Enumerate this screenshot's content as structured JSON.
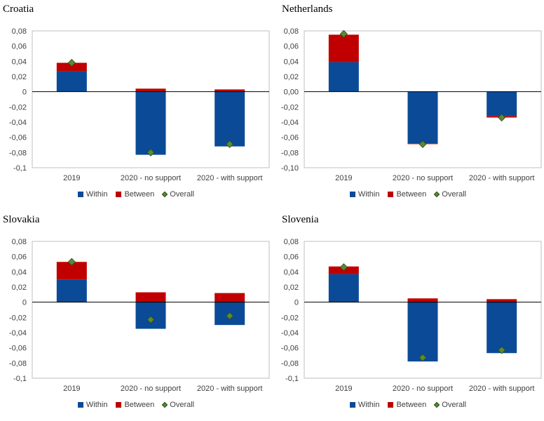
{
  "colors": {
    "within": "#0b4a96",
    "between": "#c00000",
    "overall": "#5a8a32"
  },
  "legend": {
    "within": "Within",
    "between": "Between",
    "overall": "Overall"
  },
  "chart_data": [
    {
      "type": "bar",
      "stacked": true,
      "title": "Croatia",
      "categories": [
        "2019",
        "2020 - no support",
        "2020 - with support"
      ],
      "series": [
        {
          "name": "Within",
          "values": [
            0.027,
            -0.083,
            -0.072
          ]
        },
        {
          "name": "Between",
          "values": [
            0.011,
            0.004,
            0.003
          ]
        },
        {
          "name": "Overall",
          "kind": "marker",
          "values": [
            0.038,
            -0.08,
            -0.069
          ]
        }
      ],
      "ylim": [
        -0.1,
        0.08
      ],
      "yticks": [
        "0,08",
        "0,06",
        "0,04",
        "0,02",
        "0",
        "-0,02",
        "-0,04",
        "-0,06",
        "-0,08",
        "-0,1"
      ]
    },
    {
      "type": "bar",
      "stacked": true,
      "title": "Netherlands",
      "categories": [
        "2019",
        "2020 - no support",
        "2020 - with support"
      ],
      "series": [
        {
          "name": "Within",
          "values": [
            0.039,
            -0.068,
            -0.032
          ]
        },
        {
          "name": "Between",
          "values": [
            0.036,
            -0.001,
            -0.002
          ]
        },
        {
          "name": "Overall",
          "kind": "marker",
          "values": [
            0.076,
            -0.069,
            -0.034
          ]
        }
      ],
      "ylim": [
        -0.1,
        0.08
      ],
      "yticks": [
        "0,08",
        "0,06",
        "0,04",
        "0,02",
        "0,00",
        "-0,02",
        "-0,04",
        "-0,06",
        "-0,08",
        "-0,10"
      ]
    },
    {
      "type": "bar",
      "stacked": true,
      "title": "Slovakia",
      "categories": [
        "2019",
        "2020 - no support",
        "2020 - with support"
      ],
      "series": [
        {
          "name": "Within",
          "values": [
            0.03,
            -0.035,
            -0.03
          ]
        },
        {
          "name": "Between",
          "values": [
            0.023,
            0.013,
            0.012
          ]
        },
        {
          "name": "Overall",
          "kind": "marker",
          "values": [
            0.053,
            -0.023,
            -0.018
          ]
        }
      ],
      "ylim": [
        -0.1,
        0.08
      ],
      "yticks": [
        "0,08",
        "0,06",
        "0,04",
        "0,02",
        "0",
        "-0,02",
        "-0,04",
        "-0,06",
        "-0,08",
        "-0,1"
      ]
    },
    {
      "type": "bar",
      "stacked": true,
      "title": "Slovenia",
      "categories": [
        "2019",
        "2020 - no support",
        "2020 - with support"
      ],
      "series": [
        {
          "name": "Within",
          "values": [
            0.037,
            -0.078,
            -0.067
          ]
        },
        {
          "name": "Between",
          "values": [
            0.01,
            0.005,
            0.004
          ]
        },
        {
          "name": "Overall",
          "kind": "marker",
          "values": [
            0.046,
            -0.073,
            -0.063
          ]
        }
      ],
      "ylim": [
        -0.1,
        0.08
      ],
      "yticks": [
        "0,08",
        "0,06",
        "0,04",
        "0,02",
        "0",
        "-0,02",
        "-0,04",
        "-0,06",
        "-0,08",
        "-0,1"
      ]
    }
  ]
}
